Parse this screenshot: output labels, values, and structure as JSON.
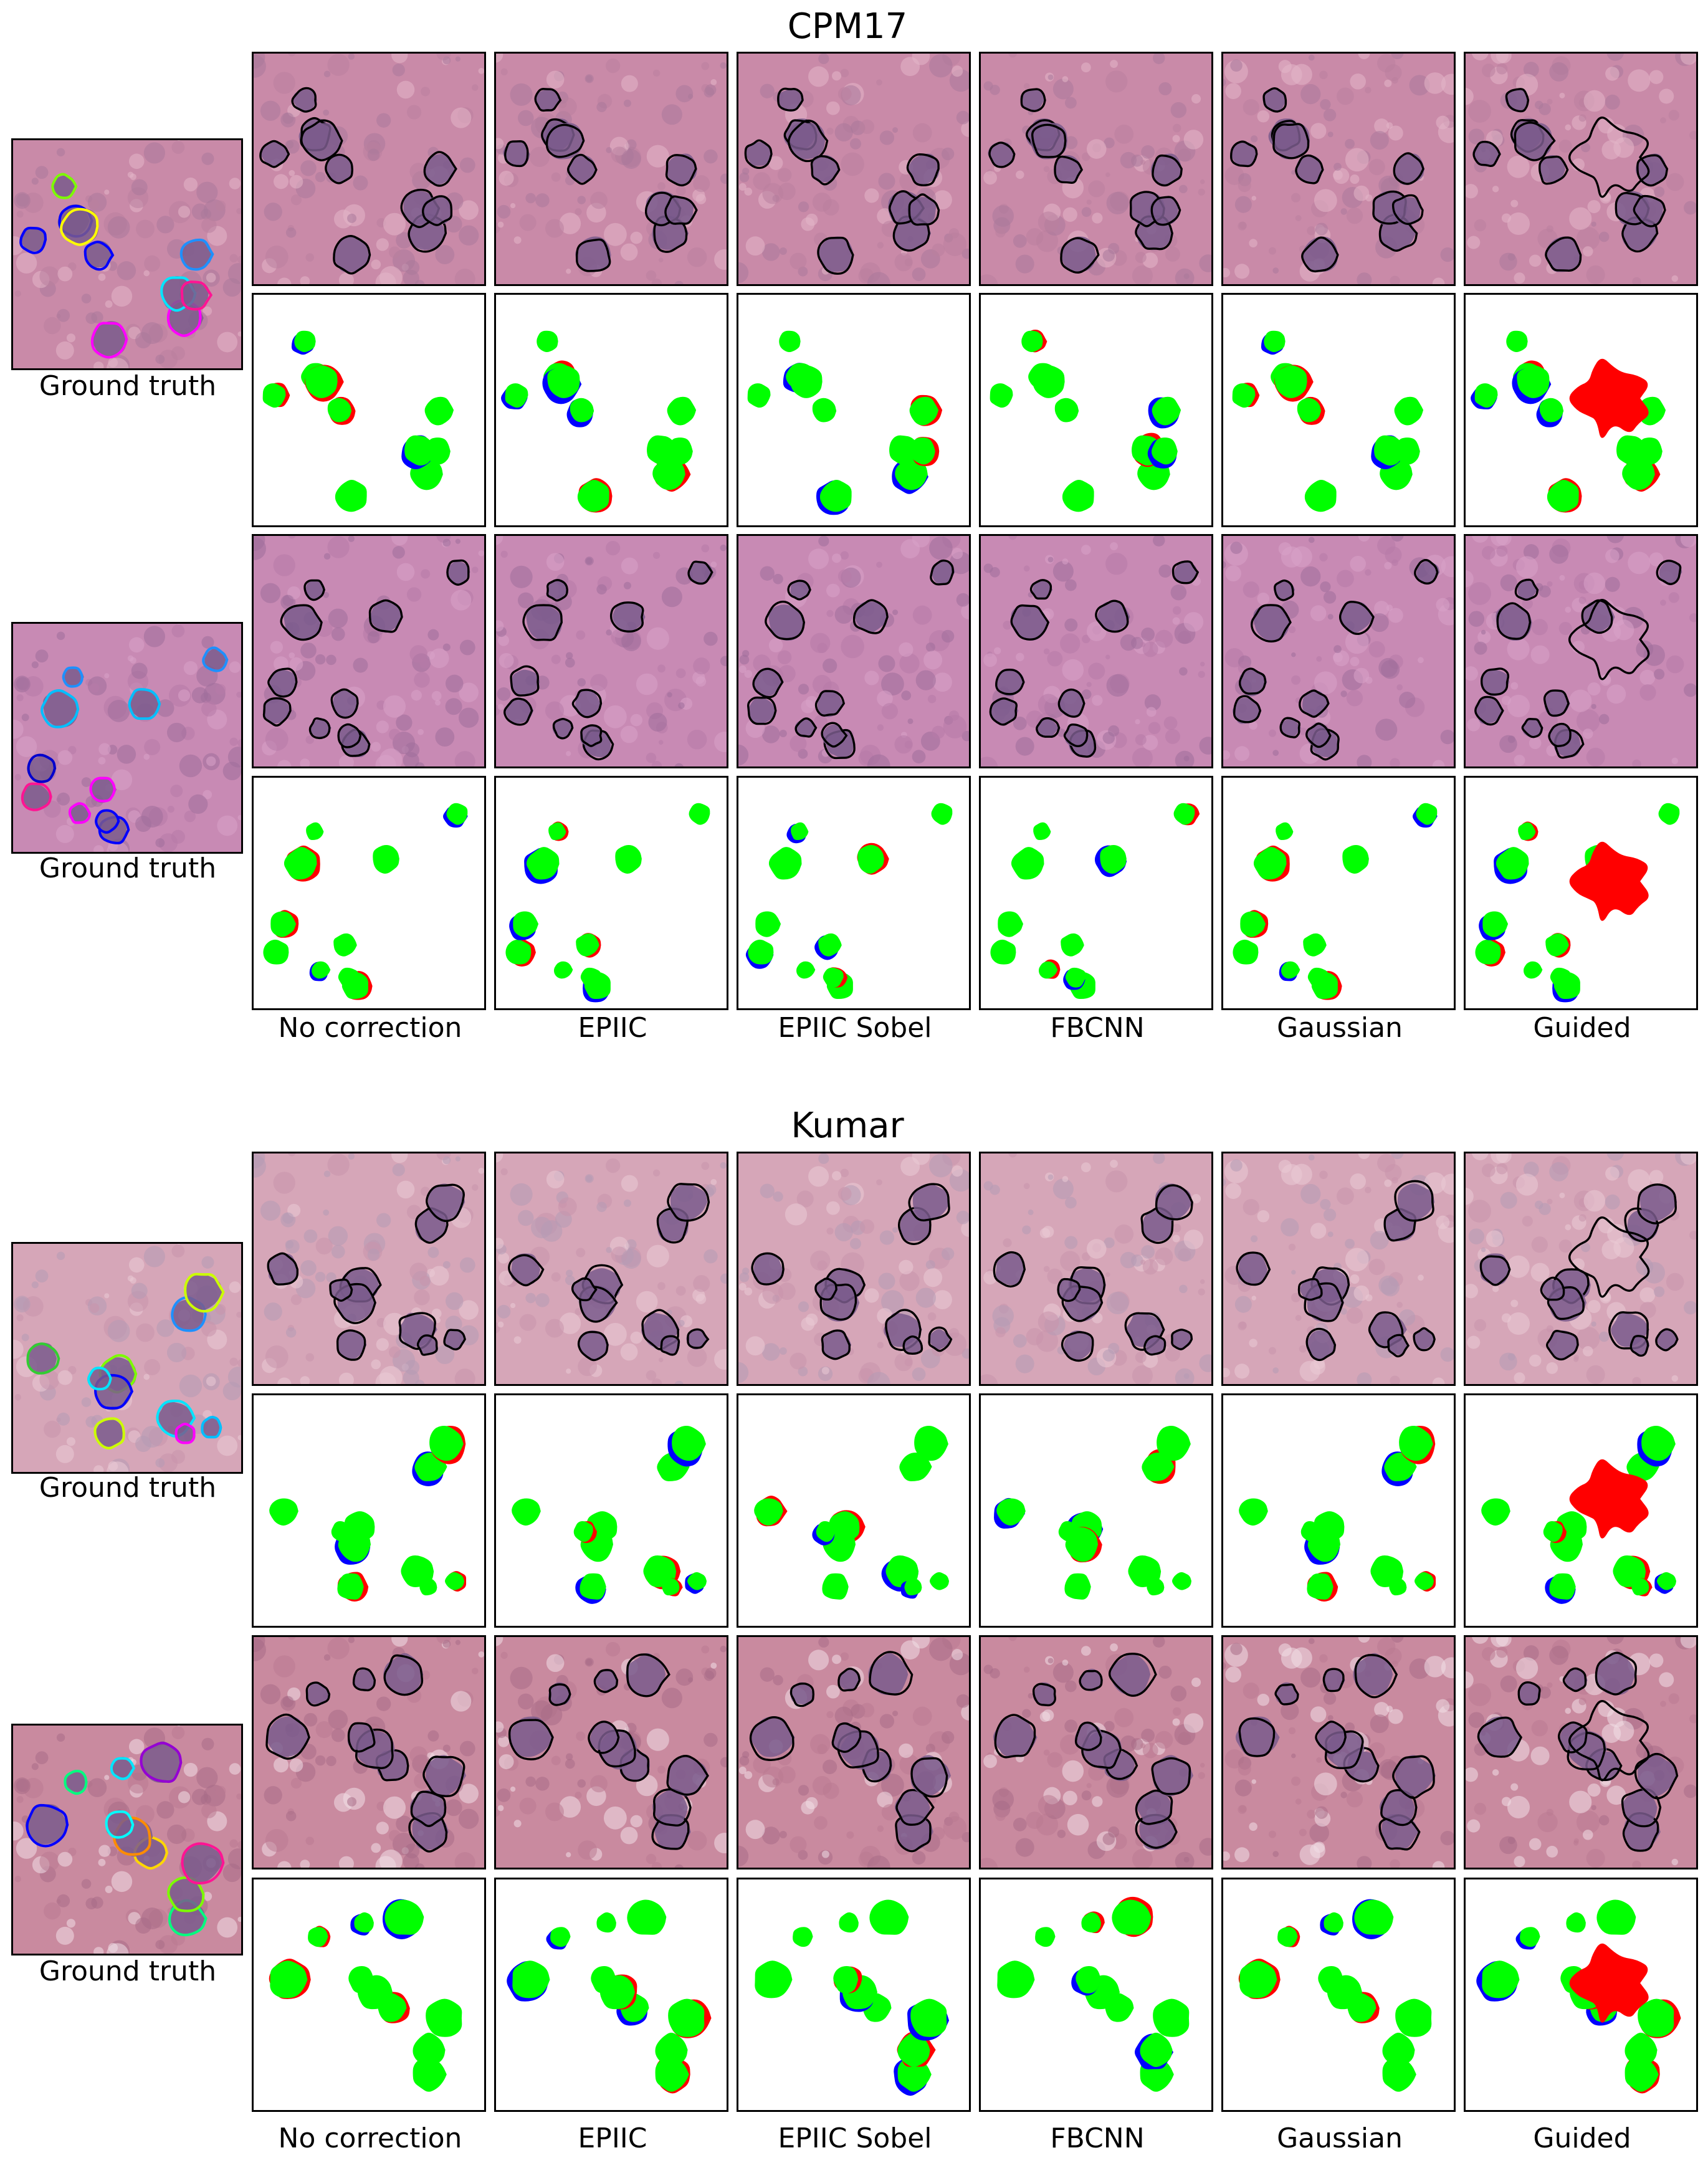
{
  "figure": {
    "sections": [
      {
        "title": "CPM17",
        "ground_truth_caption": "Ground truth",
        "column_labels": [
          "No correction",
          "EPIIC",
          "EPIIC Sobel",
          "FBCNN",
          "Gaussian",
          "Guided"
        ],
        "samples": [
          {
            "row_types": [
              "histology-with-contours",
              "error-map"
            ],
            "tissue_palette": [
              "#c98aa8",
              "#b97f9e",
              "#e4b7c8",
              "#a9789b"
            ],
            "ground_truth_contour_colors": [
              "#ff00ff",
              "#0000ff",
              "#00e5ff",
              "#1e90ff",
              "#0000ff",
              "#ffff00",
              "#7cfc00",
              "#ff1493"
            ]
          },
          {
            "row_types": [
              "histology-with-contours",
              "error-map"
            ],
            "tissue_palette": [
              "#c88ab4",
              "#b77aa8",
              "#d9a3c8",
              "#9f6e9b"
            ],
            "ground_truth_contour_colors": [
              "#1e90ff",
              "#0000ff",
              "#ff00ff",
              "#00bfff",
              "#ff1493",
              "#0000cd"
            ]
          }
        ]
      },
      {
        "title": "Kumar",
        "ground_truth_caption": "Ground truth",
        "column_labels": [
          "No correction",
          "EPIIC",
          "EPIIC Sobel",
          "FBCNN",
          "Gaussian",
          "Guided"
        ],
        "samples": [
          {
            "row_types": [
              "histology-with-contours",
              "error-map"
            ],
            "tissue_palette": [
              "#d6a6b8",
              "#c894ab",
              "#ebcbd5",
              "#b59ab4"
            ],
            "ground_truth_contour_colors": [
              "#00e5ff",
              "#ccff00",
              "#1e90ff",
              "#7cfc00",
              "#ff00ff",
              "#00bfff",
              "#0000ff",
              "#32cd32"
            ]
          },
          {
            "row_types": [
              "histology-with-contours",
              "error-map"
            ],
            "tissue_palette": [
              "#c98a9f",
              "#b97a92",
              "#f1dfe5",
              "#a86c86"
            ],
            "ground_truth_contour_colors": [
              "#00ff7f",
              "#ffd700",
              "#00e5ff",
              "#7cfc00",
              "#ff8c00",
              "#0000ff",
              "#9400d3",
              "#00ffff",
              "#ff1493"
            ]
          }
        ]
      }
    ],
    "error_map_legend_colors": {
      "true_positive": "#00ff00",
      "false_positive": "#ff0000",
      "false_negative": "#0000ff"
    },
    "prediction_contour_color": "#000000"
  }
}
